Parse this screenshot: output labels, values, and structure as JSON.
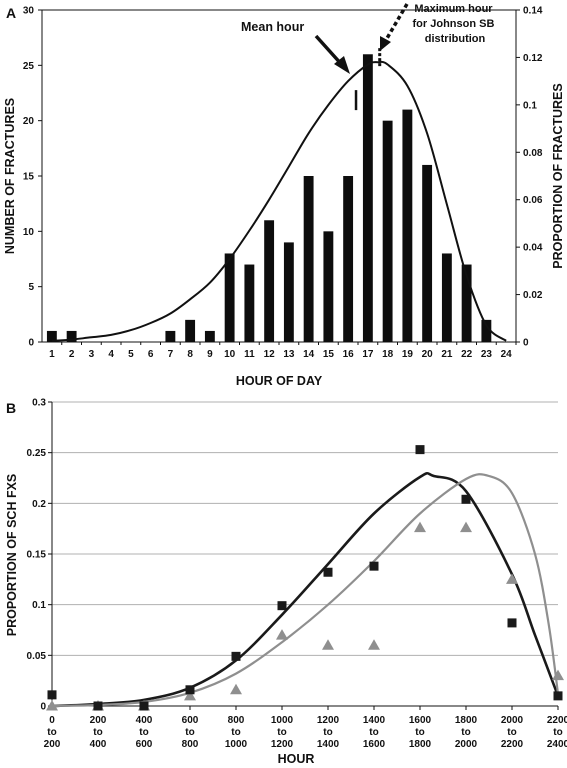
{
  "chart_data": [
    {
      "panel": "A",
      "type": "bar",
      "title": "",
      "xlabel": "HOUR OF DAY",
      "ylabel": "NUMBER OF FRACTURES",
      "y2label": "PROPORTION OF FRACTURES",
      "ylim": [
        0,
        30
      ],
      "y2lim": [
        0,
        0.14
      ],
      "yticks": [
        "0",
        "5",
        "10",
        "15",
        "20",
        "25",
        "30"
      ],
      "y2ticks": [
        "0",
        "0.02",
        "0.04",
        "0.06",
        "0.08",
        "0.1",
        "0.12",
        "0.14"
      ],
      "categories": [
        "1",
        "2",
        "3",
        "4",
        "5",
        "6",
        "7",
        "8",
        "9",
        "10",
        "11",
        "12",
        "13",
        "14",
        "15",
        "16",
        "17",
        "18",
        "19",
        "20",
        "21",
        "22",
        "23",
        "24"
      ],
      "values": [
        1,
        1,
        0,
        0,
        0,
        0,
        1,
        2,
        1,
        8,
        7,
        11,
        9,
        15,
        10,
        15,
        26,
        20,
        21,
        16,
        8,
        7,
        2,
        0
      ],
      "curve": {
        "name": "Johnson SB distribution",
        "hours": [
          1,
          2,
          3,
          4,
          5,
          6,
          7,
          8,
          9,
          10,
          11,
          12,
          13,
          14,
          15,
          16,
          17,
          17.5,
          18,
          19,
          20,
          21,
          22,
          23,
          24
        ],
        "proportion": [
          0.0005,
          0.001,
          0.002,
          0.003,
          0.005,
          0.008,
          0.012,
          0.018,
          0.025,
          0.035,
          0.047,
          0.06,
          0.074,
          0.088,
          0.1,
          0.11,
          0.117,
          0.118,
          0.117,
          0.108,
          0.088,
          0.058,
          0.028,
          0.007,
          0.0005
        ]
      },
      "annotations": {
        "mean_label": "Mean hour",
        "max_label_lines": [
          "Maximum hour",
          "for Johnson SB",
          "distribution"
        ],
        "mean_hour": 16.4,
        "max_hour": 17.6
      }
    },
    {
      "panel": "B",
      "type": "scatter",
      "title": "",
      "xlabel": "HOUR",
      "ylabel": "PROPORTION OF SCH FXS",
      "ylim": [
        0,
        0.3
      ],
      "yticks": [
        "0",
        "0.05",
        "0.1",
        "0.15",
        "0.2",
        "0.25",
        "0.3"
      ],
      "categories": [
        [
          "0",
          "to",
          "200"
        ],
        [
          "200",
          "to",
          "400"
        ],
        [
          "400",
          "to",
          "600"
        ],
        [
          "600",
          "to",
          "800"
        ],
        [
          "800",
          "to",
          "1000"
        ],
        [
          "1000",
          "to",
          "1200"
        ],
        [
          "1200",
          "to",
          "1400"
        ],
        [
          "1400",
          "to",
          "1600"
        ],
        [
          "1600",
          "to",
          "1800"
        ],
        [
          "1800",
          "to",
          "2000"
        ],
        [
          "2000",
          "to",
          "2200"
        ],
        [
          "2200",
          "to",
          "2400"
        ]
      ],
      "series": [
        {
          "color": "#1a1a1a",
          "marker": "square",
          "values": [
            0.011,
            0.0,
            0.0,
            0.016,
            0.049,
            0.099,
            0.132,
            0.138,
            0.253,
            0.204,
            0.082,
            0.01
          ],
          "curve_x": [
            0,
            1,
            2,
            3,
            4,
            5,
            6,
            7,
            8,
            8.3,
            9,
            10,
            10.5,
            11
          ],
          "curve_y": [
            0.0,
            0.002,
            0.006,
            0.018,
            0.045,
            0.09,
            0.14,
            0.19,
            0.226,
            0.227,
            0.212,
            0.13,
            0.07,
            0.01
          ]
        },
        {
          "color": "#8f8f8f",
          "marker": "triangle",
          "values": [
            0.0,
            0.0,
            0.0,
            0.01,
            0.016,
            0.07,
            0.06,
            0.06,
            0.176,
            0.176,
            0.125,
            0.03
          ],
          "curve_x": [
            0,
            1,
            2,
            3,
            4,
            5,
            6,
            7,
            8,
            9,
            9.5,
            10,
            10.5,
            10.8,
            11
          ],
          "curve_y": [
            0.0,
            0.001,
            0.004,
            0.013,
            0.032,
            0.063,
            0.1,
            0.143,
            0.19,
            0.224,
            0.227,
            0.21,
            0.15,
            0.08,
            0.012
          ]
        }
      ]
    }
  ]
}
